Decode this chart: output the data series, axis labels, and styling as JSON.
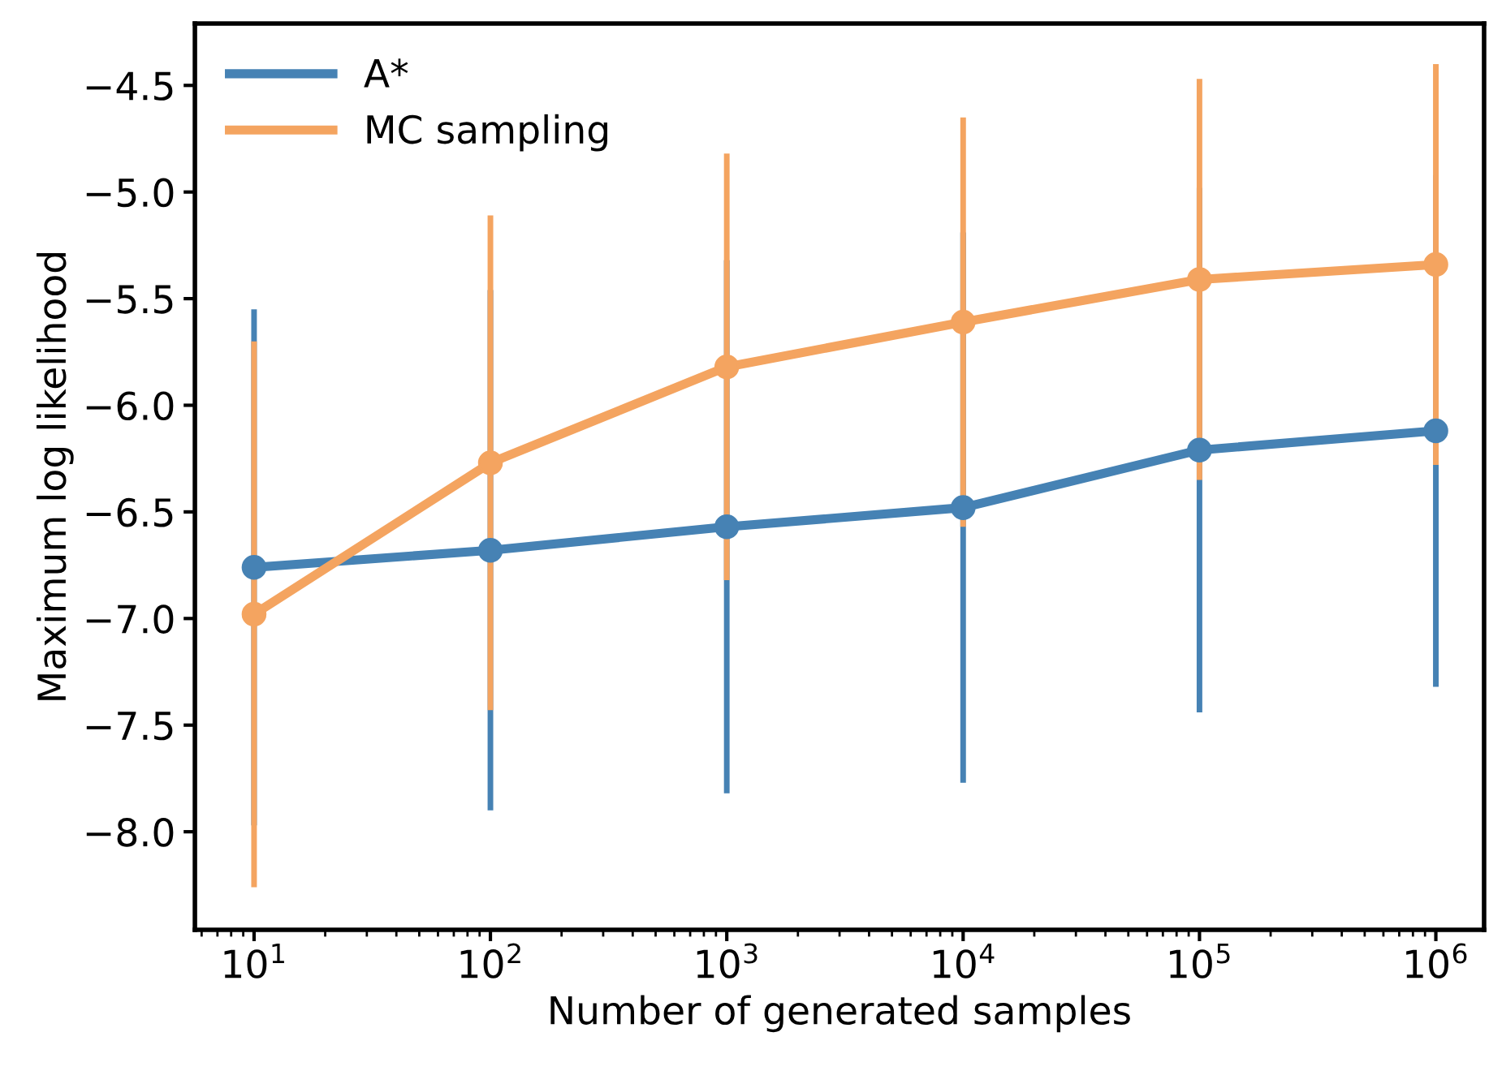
{
  "chart_data": {
    "type": "line",
    "xlabel": "Number of generated samples",
    "ylabel": "Maximum log likelihood",
    "x": [
      10,
      100,
      1000,
      10000,
      100000,
      1000000
    ],
    "log": "x",
    "xlim": [
      5.62,
      1600000
    ],
    "xticks": [
      {
        "value": 10,
        "label": "10$^{1}$"
      },
      {
        "value": 100,
        "label": "10$^{2}$"
      },
      {
        "value": 1000,
        "label": "10$^{3}$"
      },
      {
        "value": 10000,
        "label": "10$^{4}$"
      },
      {
        "value": 100000,
        "label": "10$^{5}$"
      },
      {
        "value": 1000000,
        "label": "10$^{6}$"
      }
    ],
    "ylim": [
      -8.46,
      -4.21
    ],
    "yticks": [
      {
        "value": -8.0,
        "label": "−8.0"
      },
      {
        "value": -7.5,
        "label": "−7.5"
      },
      {
        "value": -7.0,
        "label": "−7.0"
      },
      {
        "value": -6.5,
        "label": "−6.5"
      },
      {
        "value": -6.0,
        "label": "−6.0"
      },
      {
        "value": -5.5,
        "label": "−5.5"
      },
      {
        "value": -5.0,
        "label": "−5.0"
      },
      {
        "value": -4.5,
        "label": "−4.5"
      }
    ],
    "marker": "circle",
    "line_style": "solid",
    "grid": false,
    "legend": "top left",
    "series": [
      {
        "name": "A*",
        "color": "#4682b4",
        "values": [
          -6.76,
          -6.68,
          -6.57,
          -6.48,
          -6.21,
          -6.12
        ],
        "errors": [
          1.21,
          1.22,
          1.25,
          1.29,
          1.23,
          1.2
        ]
      },
      {
        "name": "MC sampling",
        "color": "#f4a460",
        "values": [
          -6.98,
          -6.27,
          -5.82,
          -5.61,
          -5.41,
          -5.34
        ],
        "errors": [
          1.28,
          1.16,
          1.0,
          0.96,
          0.94,
          0.94
        ]
      }
    ]
  }
}
